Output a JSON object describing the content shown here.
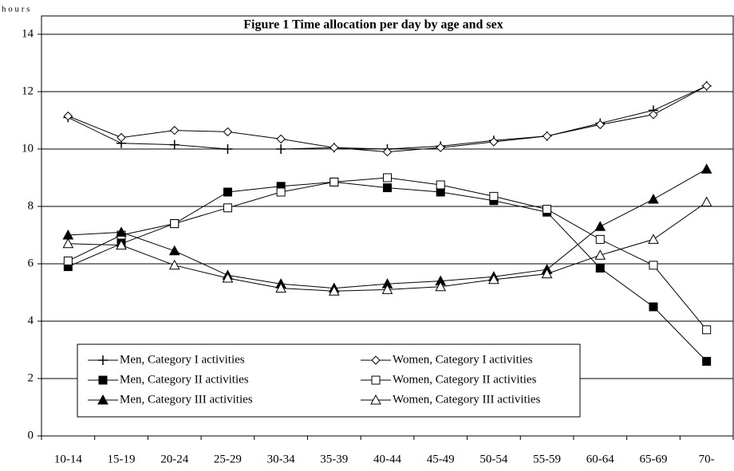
{
  "chart_data": {
    "type": "line",
    "title": "Figure 1   Time allocation per day by age and sex",
    "y_label": "h o u r s",
    "categories": [
      "10-14",
      "15-19",
      "20-24",
      "25-29",
      "30-34",
      "35-39",
      "40-44",
      "45-49",
      "50-54",
      "55-59",
      "60-64",
      "65-69",
      "70-"
    ],
    "ylim": [
      0,
      14
    ],
    "yticks": [
      0,
      2,
      4,
      6,
      8,
      10,
      12,
      14
    ],
    "grid": true,
    "legend": "bottom-left",
    "series": [
      {
        "name": "Men, Category I activities",
        "color": "#000000",
        "marker": "plus",
        "values": [
          11.1,
          10.2,
          10.15,
          10.0,
          10.0,
          10.05,
          10.0,
          10.1,
          10.3,
          10.45,
          10.9,
          11.35,
          12.2
        ]
      },
      {
        "name": "Women, Category I activities",
        "color": "#000000",
        "marker": "diamond-open",
        "values": [
          11.15,
          10.4,
          10.65,
          10.6,
          10.35,
          10.05,
          9.9,
          10.05,
          10.25,
          10.45,
          10.85,
          11.2,
          12.2
        ]
      },
      {
        "name": "Men, Category II activities",
        "color": "#000000",
        "marker": "square",
        "values": [
          5.9,
          6.7,
          7.4,
          8.5,
          8.7,
          8.85,
          8.65,
          8.5,
          8.2,
          7.8,
          5.85,
          4.5,
          2.6
        ]
      },
      {
        "name": "Women, Category II activities",
        "color": "#000000",
        "marker": "square-open",
        "values": [
          6.1,
          7.0,
          7.4,
          7.95,
          8.5,
          8.85,
          9.0,
          8.75,
          8.35,
          7.9,
          6.85,
          5.95,
          3.7
        ]
      },
      {
        "name": "Men, Category III activities",
        "color": "#000000",
        "marker": "triangle",
        "values": [
          7.0,
          7.1,
          6.45,
          5.6,
          5.3,
          5.15,
          5.3,
          5.4,
          5.55,
          5.8,
          7.3,
          8.25,
          9.3
        ]
      },
      {
        "name": "Women, Category III activities",
        "color": "#000000",
        "marker": "triangle-open",
        "values": [
          6.7,
          6.65,
          5.95,
          5.5,
          5.15,
          5.05,
          5.1,
          5.2,
          5.45,
          5.65,
          6.3,
          6.85,
          8.15
        ]
      }
    ]
  }
}
